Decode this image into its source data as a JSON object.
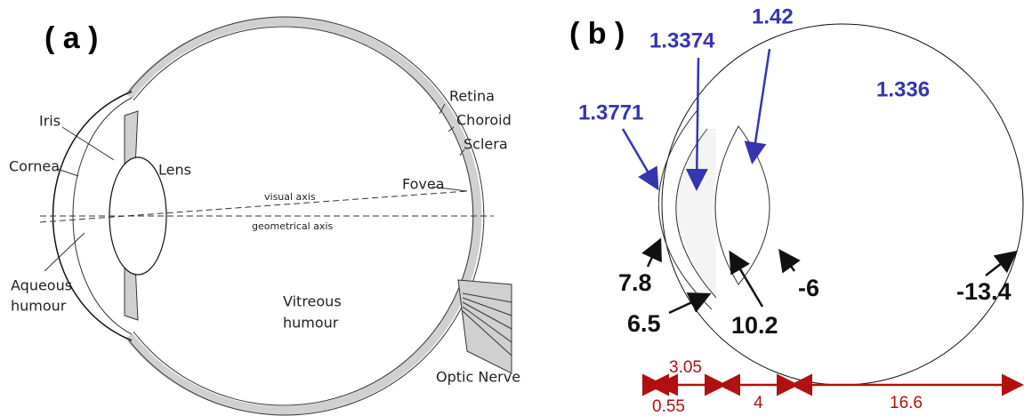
{
  "panel_a": {
    "label": "( a )",
    "labels": {
      "retina": "Retina",
      "choroid": "Choroid",
      "sclera": "Sclera",
      "iris": "Iris",
      "cornea": "Cornea",
      "lens": "Lens",
      "visual_axis": "visual axis",
      "fovea": "Fovea",
      "geometrical_axis": "geometrical axis",
      "aqueous_humour": [
        "Aqueous",
        "humour"
      ],
      "vitreous_humour": [
        "Vitreous",
        "humour"
      ],
      "optic_nerve": "Optic Nerve"
    }
  },
  "panel_b": {
    "label": "( b )",
    "refractive_indices": {
      "cornea": "1.3771",
      "aqueous": "1.3374",
      "lens": "1.42",
      "vitreous": "1.336"
    },
    "radii": {
      "cornea_front": "7.8",
      "cornea_back": "6.5",
      "lens_front": "10.2",
      "lens_back": "-6",
      "retina": "-13.4"
    },
    "distances": {
      "cornea": "0.55",
      "aqueous": "3.05",
      "lens": "4",
      "vitreous": "16.6"
    }
  }
}
